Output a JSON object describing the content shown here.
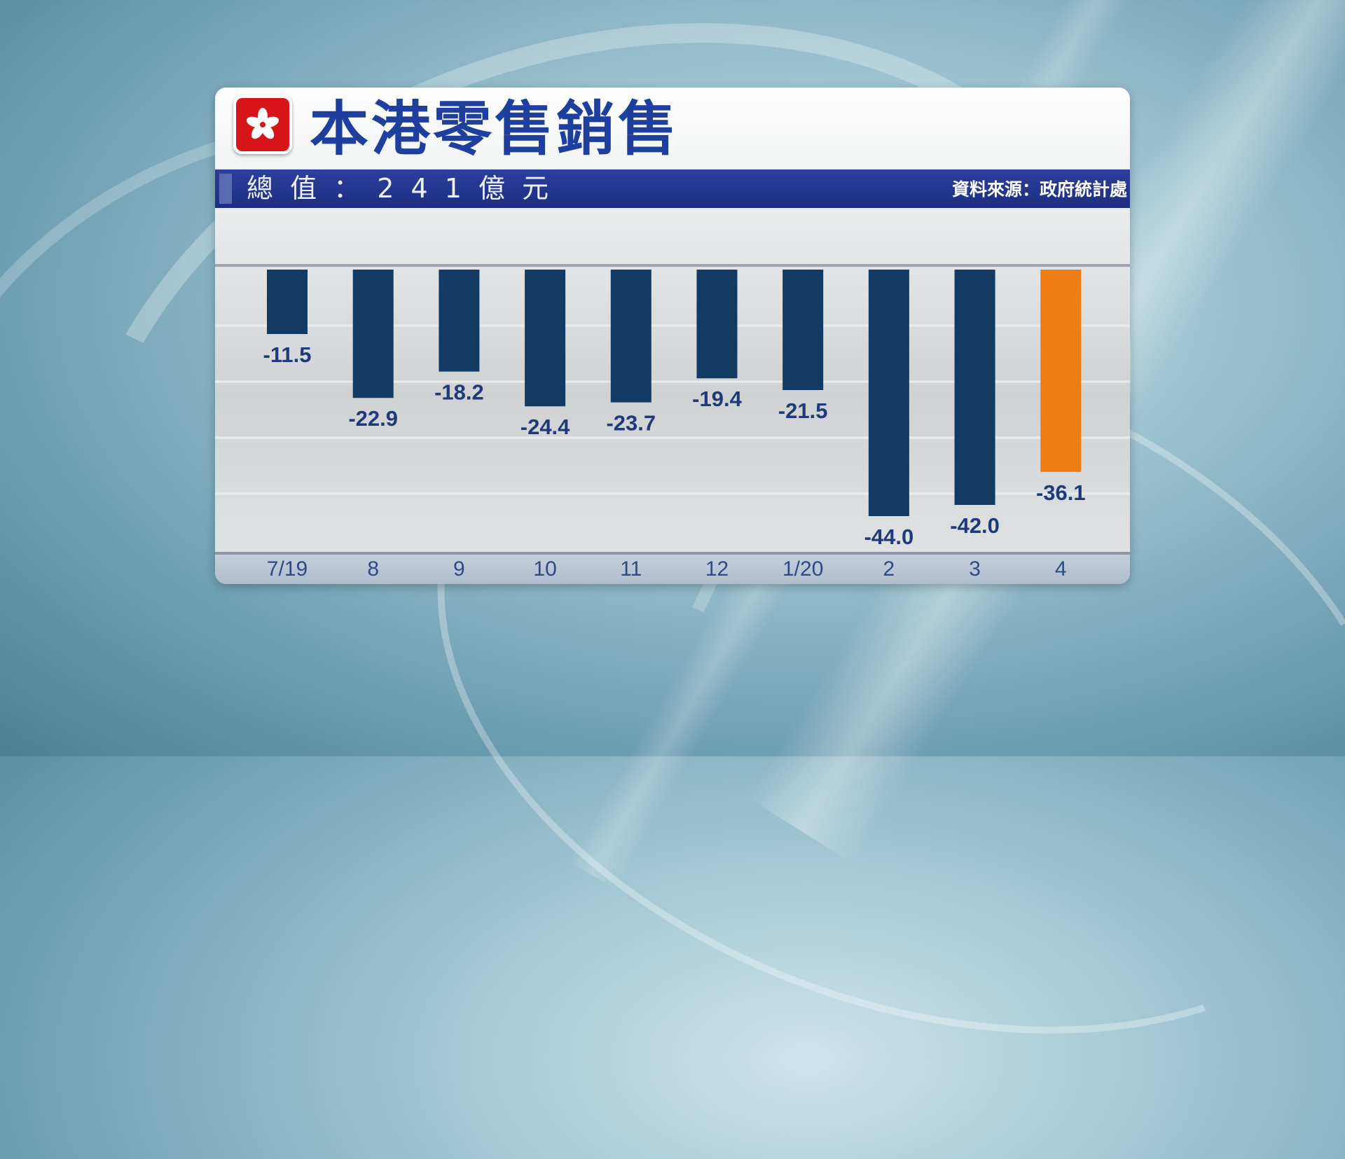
{
  "header": {
    "title": "本港零售銷售",
    "total_value": "總 值 ： 2 4 1 億 元",
    "source": "資料來源：政府統計處"
  },
  "logo": {
    "icon": "hk-bauhinia-flag-icon",
    "color": "#d7141a"
  },
  "colors": {
    "bar": "#123a63",
    "highlight": "#ee7d16",
    "title": "#1f3f9e",
    "header_bar": "#1c2d82"
  },
  "chart_data": {
    "type": "bar",
    "title": "本港零售銷售",
    "categories": [
      "7/19",
      "8",
      "9",
      "10",
      "11",
      "12",
      "1/20",
      "2",
      "3",
      "4"
    ],
    "values": [
      -11.5,
      -22.9,
      -18.2,
      -24.4,
      -23.7,
      -19.4,
      -21.5,
      -44.0,
      -42.0,
      -36.1
    ],
    "value_labels": [
      "-11.5",
      "-22.9",
      "-18.2",
      "-24.4",
      "-23.7",
      "-19.4",
      "-21.5",
      "-44.0",
      "-42.0",
      "-36.1"
    ],
    "highlight_index": 9,
    "ylim": [
      -50,
      0
    ],
    "grid": true,
    "legend": "none"
  }
}
